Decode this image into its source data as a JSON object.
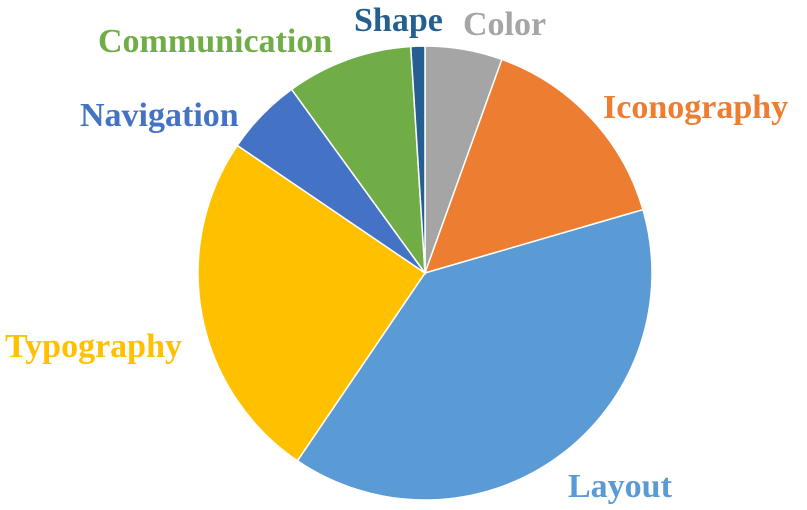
{
  "chart_data": {
    "type": "pie",
    "title": "",
    "start_angle_deg": 0,
    "direction": "clockwise",
    "legend": "none",
    "slices": [
      {
        "label": "Color",
        "value": 5.5,
        "color": "#A5A5A5"
      },
      {
        "label": "Iconography",
        "value": 15.0,
        "color": "#ED7D31"
      },
      {
        "label": "Layout",
        "value": 39.0,
        "color": "#5B9BD5"
      },
      {
        "label": "Typography",
        "value": 25.0,
        "color": "#FFC000"
      },
      {
        "label": "Navigation",
        "value": 5.5,
        "color": "#4472C4"
      },
      {
        "label": "Communication",
        "value": 9.0,
        "color": "#70AD47"
      },
      {
        "label": "Shape",
        "value": 1.0,
        "color": "#255E91"
      }
    ]
  }
}
